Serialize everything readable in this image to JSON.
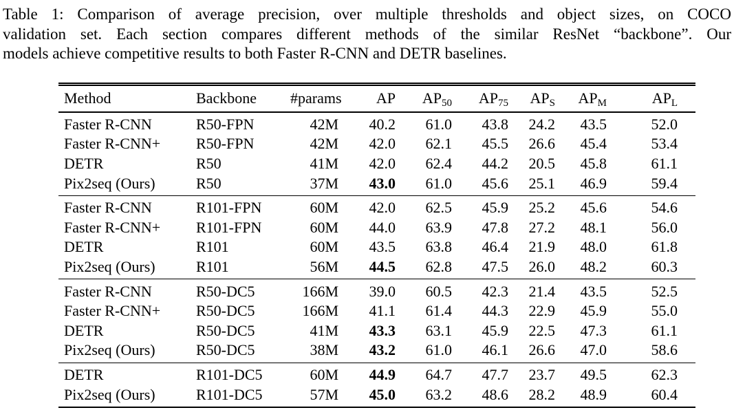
{
  "caption": {
    "lines": [
      "Table 1: Comparison of average precision, over multiple thresholds and object sizes, on COCO",
      "validation set. Each section compares different methods of the similar ResNet “backbone”. Our",
      "models achieve competitive results to both Faster R-CNN and DETR baselines."
    ]
  },
  "table": {
    "headers": [
      {
        "text": "Method",
        "sub": ""
      },
      {
        "text": "Backbone",
        "sub": ""
      },
      {
        "text": "#params",
        "sub": ""
      },
      {
        "text": "AP",
        "sub": ""
      },
      {
        "text": "AP",
        "sub": "50"
      },
      {
        "text": "AP",
        "sub": "75"
      },
      {
        "text": "AP",
        "sub": "S"
      },
      {
        "text": "AP",
        "sub": "M"
      },
      {
        "text": "AP",
        "sub": "L"
      }
    ],
    "sections": [
      {
        "rows": [
          {
            "method": "Faster R-CNN",
            "backbone": "R50-FPN",
            "params": "42M",
            "ap": "40.2",
            "ap_bold": false,
            "ap50": "61.0",
            "ap75": "43.8",
            "aps": "24.2",
            "apm": "43.5",
            "apl": "52.0"
          },
          {
            "method": "Faster R-CNN+",
            "backbone": "R50-FPN",
            "params": "42M",
            "ap": "42.0",
            "ap_bold": false,
            "ap50": "62.1",
            "ap75": "45.5",
            "aps": "26.6",
            "apm": "45.4",
            "apl": "53.4"
          },
          {
            "method": "DETR",
            "backbone": "R50",
            "params": "41M",
            "ap": "42.0",
            "ap_bold": false,
            "ap50": "62.4",
            "ap75": "44.2",
            "aps": "20.5",
            "apm": "45.8",
            "apl": "61.1"
          },
          {
            "method": "Pix2seq (Ours)",
            "backbone": "R50",
            "params": "37M",
            "ap": "43.0",
            "ap_bold": true,
            "ap50": "61.0",
            "ap75": "45.6",
            "aps": "25.1",
            "apm": "46.9",
            "apl": "59.4"
          }
        ]
      },
      {
        "rows": [
          {
            "method": "Faster R-CNN",
            "backbone": "R101-FPN",
            "params": "60M",
            "ap": "42.0",
            "ap_bold": false,
            "ap50": "62.5",
            "ap75": "45.9",
            "aps": "25.2",
            "apm": "45.6",
            "apl": "54.6"
          },
          {
            "method": "Faster R-CNN+",
            "backbone": "R101-FPN",
            "params": "60M",
            "ap": "44.0",
            "ap_bold": false,
            "ap50": "63.9",
            "ap75": "47.8",
            "aps": "27.2",
            "apm": "48.1",
            "apl": "56.0"
          },
          {
            "method": "DETR",
            "backbone": "R101",
            "params": "60M",
            "ap": "43.5",
            "ap_bold": false,
            "ap50": "63.8",
            "ap75": "46.4",
            "aps": "21.9",
            "apm": "48.0",
            "apl": "61.8"
          },
          {
            "method": "Pix2seq (Ours)",
            "backbone": "R101",
            "params": "56M",
            "ap": "44.5",
            "ap_bold": true,
            "ap50": "62.8",
            "ap75": "47.5",
            "aps": "26.0",
            "apm": "48.2",
            "apl": "60.3"
          }
        ]
      },
      {
        "rows": [
          {
            "method": "Faster R-CNN",
            "backbone": "R50-DC5",
            "params": "166M",
            "ap": "39.0",
            "ap_bold": false,
            "ap50": "60.5",
            "ap75": "42.3",
            "aps": "21.4",
            "apm": "43.5",
            "apl": "52.5"
          },
          {
            "method": "Faster R-CNN+",
            "backbone": "R50-DC5",
            "params": "166M",
            "ap": "41.1",
            "ap_bold": false,
            "ap50": "61.4",
            "ap75": "44.3",
            "aps": "22.9",
            "apm": "45.9",
            "apl": "55.0"
          },
          {
            "method": "DETR",
            "backbone": "R50-DC5",
            "params": "41M",
            "ap": "43.3",
            "ap_bold": true,
            "ap50": "63.1",
            "ap75": "45.9",
            "aps": "22.5",
            "apm": "47.3",
            "apl": "61.1"
          },
          {
            "method": "Pix2seq (Ours)",
            "backbone": "R50-DC5",
            "params": "38M",
            "ap": "43.2",
            "ap_bold": true,
            "ap50": "61.0",
            "ap75": "46.1",
            "aps": "26.6",
            "apm": "47.0",
            "apl": "58.6"
          }
        ]
      },
      {
        "rows": [
          {
            "method": "DETR",
            "backbone": "R101-DC5",
            "params": "60M",
            "ap": "44.9",
            "ap_bold": true,
            "ap50": "64.7",
            "ap75": "47.7",
            "aps": "23.7",
            "apm": "49.5",
            "apl": "62.3"
          },
          {
            "method": "Pix2seq (Ours)",
            "backbone": "R101-DC5",
            "params": "57M",
            "ap": "45.0",
            "ap_bold": true,
            "ap50": "63.2",
            "ap75": "48.6",
            "aps": "28.2",
            "apm": "48.9",
            "apl": "60.4"
          }
        ]
      }
    ]
  }
}
